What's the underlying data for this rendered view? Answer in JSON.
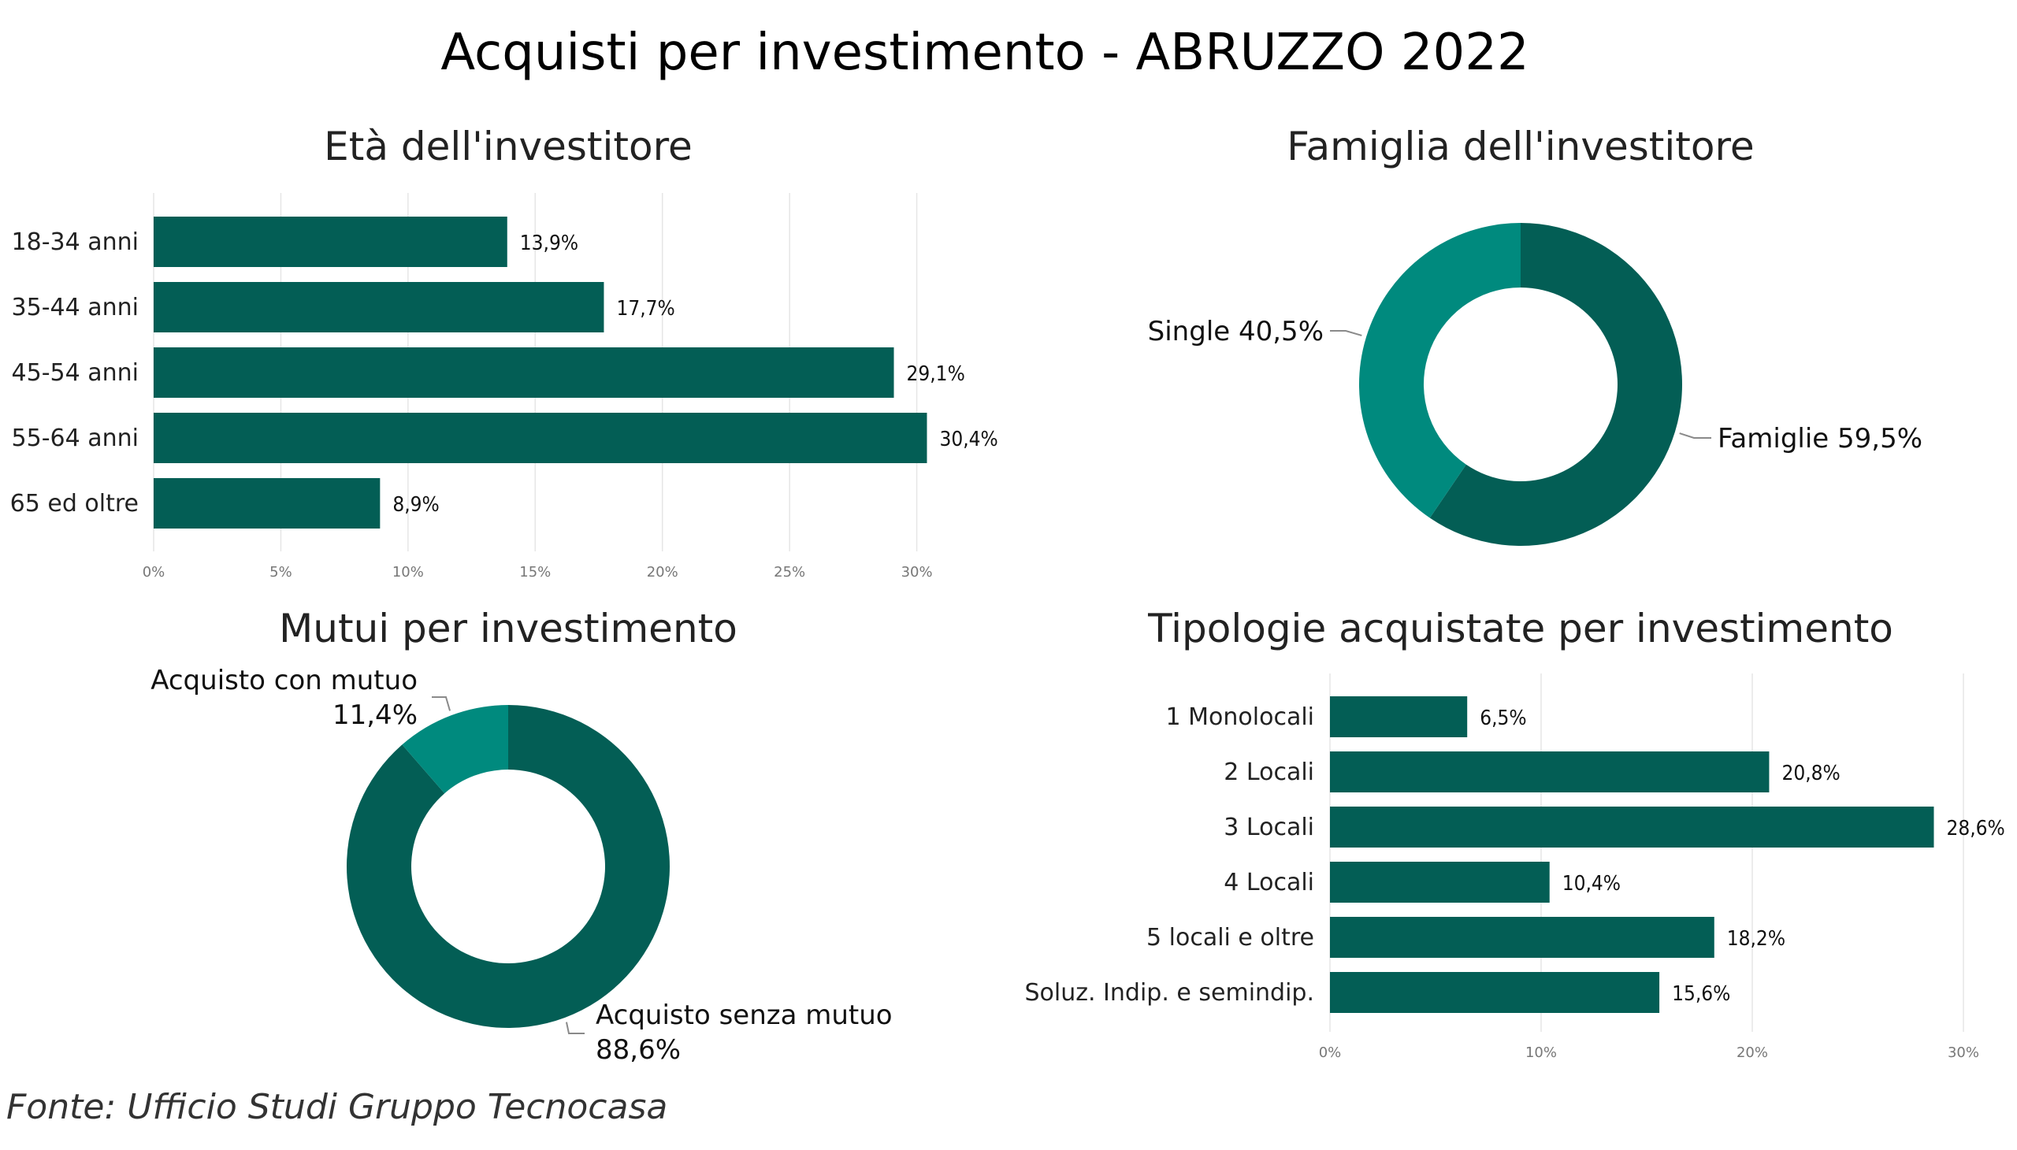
{
  "page": {
    "title": "Acquisti per investimento - ABRUZZO 2022",
    "footer": "Fonte: Ufficio Studi Gruppo Tecnocasa"
  },
  "colors": {
    "dark": "#035e55",
    "teal": "#008a7e",
    "grid": "#e6e6e6",
    "leader": "#8a8a8a"
  },
  "chart_data": [
    {
      "type": "bar",
      "orientation": "horizontal",
      "title": "Età dell'investitore",
      "categories": [
        "18-34 anni",
        "35-44 anni",
        "45-54 anni",
        "55-64 anni",
        "65 ed oltre"
      ],
      "values": [
        13.9,
        17.7,
        29.1,
        30.4,
        8.9
      ],
      "value_labels": [
        "13,9%",
        "17,7%",
        "29,1%",
        "30,4%",
        "8,9%"
      ],
      "xlim": [
        0,
        31.5
      ],
      "ticks": [
        0,
        5,
        10,
        15,
        20,
        25,
        30
      ],
      "tick_labels": [
        "0%",
        "5%",
        "10%",
        "15%",
        "20%",
        "25%",
        "30%"
      ],
      "grid": true
    },
    {
      "type": "pie",
      "donut": true,
      "title": "Famiglia dell'investitore",
      "categories": [
        "Famiglie",
        "Single"
      ],
      "values": [
        59.5,
        40.5
      ],
      "labels": [
        [
          "Famiglie 59,5%"
        ],
        [
          "Single 40,5%"
        ]
      ]
    },
    {
      "type": "pie",
      "donut": true,
      "title": "Mutui per investimento",
      "categories": [
        "Acquisto senza mutuo",
        "Acquisto con mutuo"
      ],
      "values": [
        88.6,
        11.4
      ],
      "labels": [
        [
          "Acquisto senza mutuo",
          "88,6%"
        ],
        [
          "Acquisto con mutuo",
          "11,4%"
        ]
      ]
    },
    {
      "type": "bar",
      "orientation": "horizontal",
      "title": "Tipologie acquistate per investimento",
      "categories": [
        "1 Monolocali",
        "2 Locali",
        "3 Locali",
        "4 Locali",
        "5 locali e oltre",
        "Soluz. Indip. e semindip."
      ],
      "values": [
        6.5,
        20.8,
        28.6,
        10.4,
        18.2,
        15.6
      ],
      "value_labels": [
        "6,5%",
        "20,8%",
        "28,6%",
        "10,4%",
        "18,2%",
        "15,6%"
      ],
      "xlim": [
        0,
        30
      ],
      "ticks": [
        0,
        10,
        20,
        30
      ],
      "tick_labels": [
        "0%",
        "10%",
        "20%",
        "30%"
      ],
      "grid": true
    }
  ]
}
